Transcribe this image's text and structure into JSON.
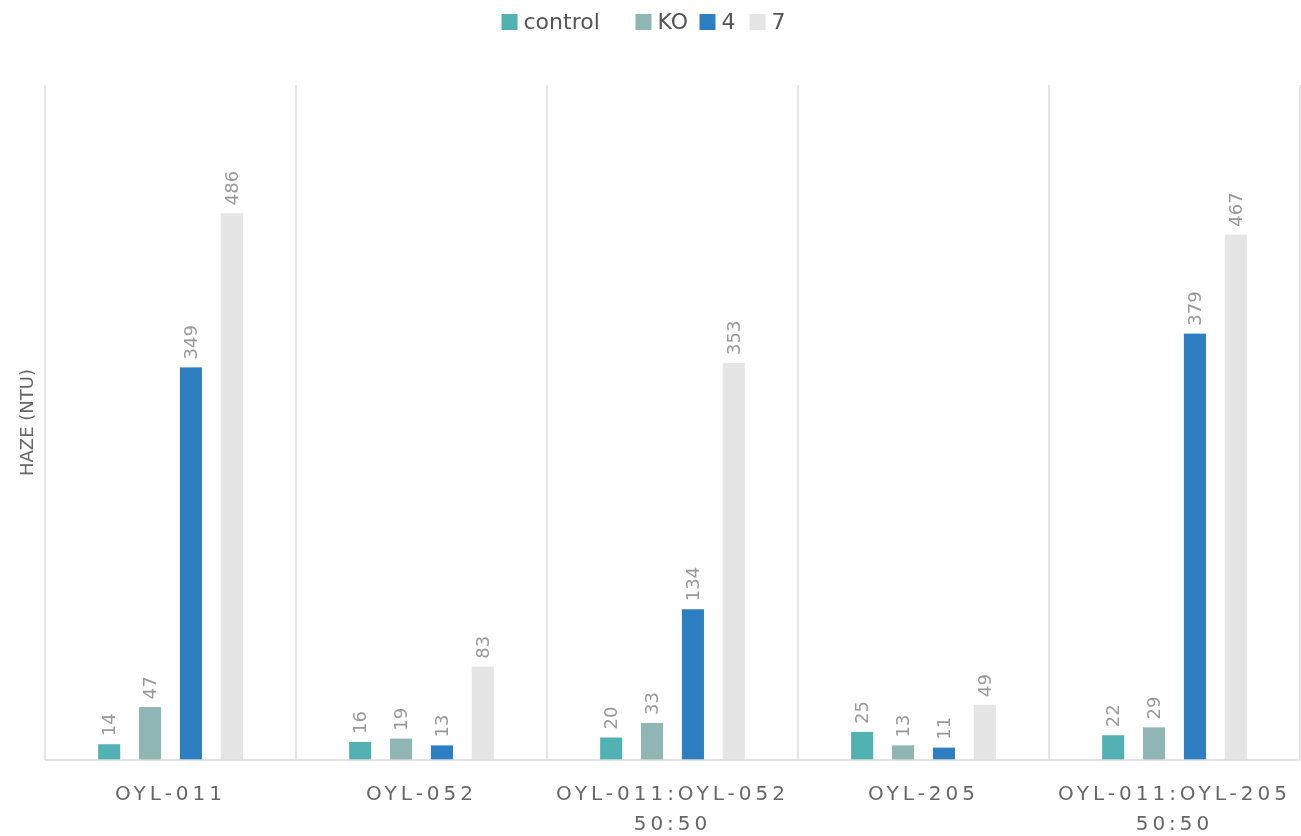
{
  "chart_data": {
    "type": "bar",
    "ylabel": "HAZE (NTU)",
    "categories": [
      "OYL-011",
      "OYL-052",
      "OYL-011:OYL-052\n50:50",
      "OYL-205",
      "OYL-011:OYL-205\n50:50"
    ],
    "series": [
      {
        "name": "control",
        "color": "#52b2b3",
        "values": [
          14,
          16,
          20,
          25,
          22
        ]
      },
      {
        "name": "KO",
        "color": "#90b5b5",
        "values": [
          47,
          19,
          33,
          13,
          29
        ]
      },
      {
        "name": "4",
        "color": "#2d7fc1",
        "values": [
          349,
          13,
          134,
          11,
          379
        ]
      },
      {
        "name": "7",
        "color": "#e5e5e5",
        "values": [
          486,
          83,
          353,
          49,
          467
        ]
      }
    ],
    "ylim": [
      0,
      600
    ],
    "tick_labels": "x",
    "data_labels": true,
    "grid": "x",
    "legend": "top"
  }
}
